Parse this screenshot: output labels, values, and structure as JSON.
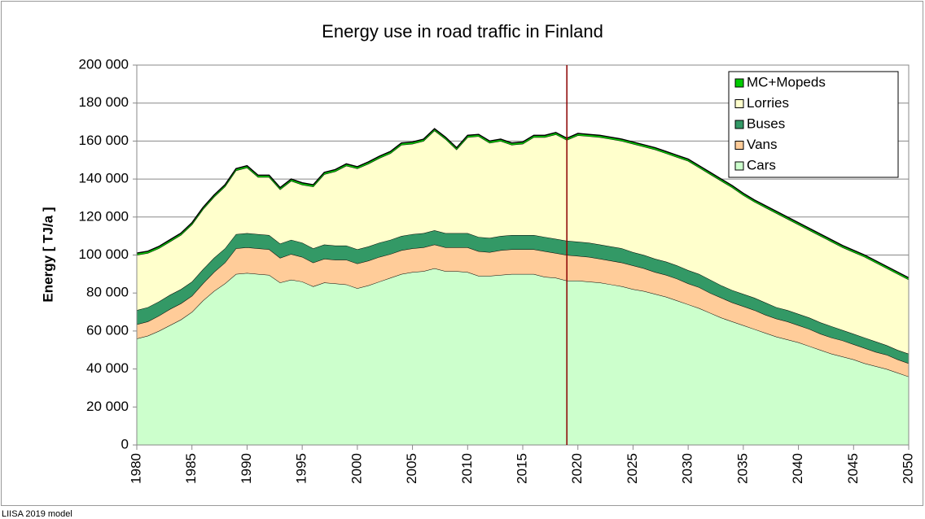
{
  "chart_data": {
    "type": "stacked_area",
    "title": "Energy use in road traffic in Finland",
    "y_label": "Energy [ TJ/a ]",
    "footer": "LIISA 2019 model",
    "x": [
      1980,
      1981,
      1982,
      1983,
      1984,
      1985,
      1986,
      1987,
      1988,
      1989,
      1990,
      1991,
      1992,
      1993,
      1994,
      1995,
      1996,
      1997,
      1998,
      1999,
      2000,
      2001,
      2002,
      2003,
      2004,
      2005,
      2006,
      2007,
      2008,
      2009,
      2010,
      2011,
      2012,
      2013,
      2014,
      2015,
      2016,
      2017,
      2018,
      2019,
      2020,
      2021,
      2022,
      2023,
      2024,
      2025,
      2026,
      2027,
      2028,
      2029,
      2030,
      2031,
      2032,
      2033,
      2034,
      2035,
      2036,
      2037,
      2038,
      2039,
      2040,
      2041,
      2042,
      2043,
      2044,
      2045,
      2046,
      2047,
      2048,
      2049,
      2050
    ],
    "series": [
      {
        "name": "Cars",
        "color": "#ccffcc",
        "values": [
          56000,
          57500,
          60000,
          63000,
          66000,
          70000,
          76000,
          81000,
          85000,
          90000,
          90500,
          90000,
          89500,
          85500,
          87000,
          86000,
          83500,
          85500,
          85000,
          84500,
          82500,
          84000,
          86000,
          88000,
          90000,
          91000,
          91500,
          93000,
          91500,
          91500,
          91000,
          89000,
          89000,
          89500,
          90000,
          90000,
          90000,
          88500,
          88000,
          86500,
          86500,
          86000,
          85500,
          84500,
          83500,
          82000,
          81000,
          79500,
          78000,
          76000,
          74000,
          72000,
          69500,
          67000,
          65000,
          63000,
          61000,
          59000,
          57000,
          55500,
          54000,
          52000,
          50000,
          48000,
          46500,
          45000,
          43000,
          41500,
          40000,
          38000,
          36000
        ]
      },
      {
        "name": "Vans",
        "color": "#ffcc99",
        "values": [
          7500,
          7500,
          8000,
          8500,
          8500,
          8500,
          9000,
          10000,
          11000,
          13500,
          13500,
          13500,
          13500,
          13000,
          13500,
          13000,
          12500,
          12500,
          12500,
          13000,
          13000,
          13000,
          13000,
          12500,
          12500,
          12500,
          12500,
          12500,
          12500,
          12500,
          13000,
          13000,
          12500,
          13000,
          13000,
          13000,
          13000,
          13500,
          13000,
          13500,
          13000,
          13000,
          12500,
          12500,
          12500,
          12500,
          12000,
          11500,
          11500,
          11500,
          11000,
          11000,
          10500,
          10500,
          10000,
          10000,
          10000,
          9500,
          9500,
          9500,
          9000,
          9000,
          8500,
          8500,
          8500,
          8000,
          8000,
          7500,
          7500,
          7000,
          7000
        ]
      },
      {
        "name": "Buses",
        "color": "#339966",
        "values": [
          7500,
          7500,
          7500,
          7500,
          7500,
          7500,
          7500,
          7500,
          7500,
          7500,
          7500,
          7500,
          7500,
          7500,
          7500,
          7500,
          7500,
          7500,
          7500,
          7500,
          7500,
          7500,
          7500,
          7500,
          7500,
          7500,
          7500,
          7500,
          7500,
          7500,
          7500,
          7500,
          7500,
          7500,
          7500,
          7500,
          7500,
          7500,
          7500,
          7500,
          7500,
          7500,
          7500,
          7500,
          7500,
          7000,
          7000,
          7000,
          7000,
          7000,
          7000,
          7000,
          7000,
          6500,
          6500,
          6500,
          6500,
          6500,
          6000,
          6000,
          6000,
          6000,
          6000,
          6000,
          5500,
          5500,
          5500,
          5500,
          5000,
          5000,
          5000
        ]
      },
      {
        "name": "Lorries",
        "color": "#ffffcc",
        "values": [
          29000,
          28500,
          28000,
          28000,
          28500,
          30000,
          31500,
          32000,
          32500,
          33500,
          34500,
          30000,
          30500,
          28500,
          31000,
          30500,
          32500,
          37000,
          39000,
          42000,
          42500,
          43500,
          44500,
          45500,
          48000,
          47500,
          48500,
          52500,
          49500,
          44000,
          50500,
          53000,
          50000,
          50000,
          47500,
          48000,
          51500,
          52500,
          55000,
          53000,
          56000,
          56000,
          56500,
          56500,
          56500,
          57000,
          57000,
          57500,
          57000,
          57000,
          57500,
          56000,
          55500,
          55000,
          54000,
          52000,
          50500,
          50000,
          49500,
          48000,
          47000,
          46000,
          45500,
          44500,
          43500,
          43000,
          42500,
          41500,
          40500,
          40000,
          39000
        ]
      },
      {
        "name": "MC+Mopeds",
        "color": "#00cc00",
        "values": [
          1000,
          1000,
          1000,
          1000,
          1000,
          1000,
          1000,
          1000,
          1000,
          1000,
          1000,
          1000,
          1000,
          1000,
          1000,
          1000,
          1000,
          1000,
          1000,
          1000,
          1000,
          1000,
          1000,
          1000,
          1000,
          1000,
          1000,
          1000,
          1000,
          1000,
          1000,
          1000,
          1000,
          1000,
          1000,
          1000,
          1000,
          1000,
          1000,
          1000,
          1000,
          1000,
          1000,
          1000,
          1000,
          1000,
          1000,
          1000,
          1000,
          1000,
          1000,
          1000,
          1000,
          1000,
          1000,
          1000,
          1000,
          1000,
          1000,
          1000,
          1000,
          1000,
          1000,
          1000,
          1000,
          1000,
          1000,
          1000,
          1000,
          1000,
          1000
        ]
      }
    ],
    "xlim": [
      1980,
      2050
    ],
    "xticks": [
      1980,
      1985,
      1990,
      1995,
      2000,
      2005,
      2010,
      2015,
      2020,
      2025,
      2030,
      2035,
      2040,
      2045,
      2050
    ],
    "ylim": [
      0,
      200000
    ],
    "yticks": [
      0,
      {
        "value": 20000,
        "label": "20 000"
      },
      {
        "value": 40000,
        "label": "40 000"
      },
      {
        "value": 60000,
        "label": "60 000"
      },
      {
        "value": 80000,
        "label": "80 000"
      },
      {
        "value": 100000,
        "label": "100 000"
      },
      {
        "value": 120000,
        "label": "120 000"
      },
      {
        "value": 140000,
        "label": "140 000"
      },
      {
        "value": 160000,
        "label": "160 000"
      },
      {
        "value": 180000,
        "label": "180 000"
      },
      {
        "value": 200000,
        "label": "200 000"
      }
    ],
    "grid": true,
    "legend": "top-right",
    "vline_x": 2019,
    "vline_color": "#8b0000"
  }
}
